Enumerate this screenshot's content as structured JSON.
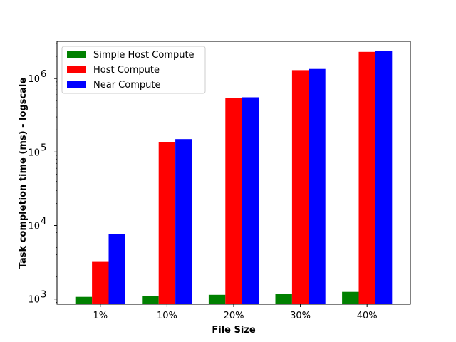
{
  "chart_data": {
    "type": "bar",
    "xlabel": "File Size",
    "ylabel": "Task completion time (ms) - logscale",
    "yscale": "log",
    "ylim": [
      850,
      3200000
    ],
    "categories": [
      "1%",
      "10%",
      "20%",
      "30%",
      "40%"
    ],
    "y_ticks": [
      {
        "value": 1000,
        "base": "10",
        "exp": "3"
      },
      {
        "value": 10000,
        "base": "10",
        "exp": "4"
      },
      {
        "value": 100000,
        "base": "10",
        "exp": "5"
      },
      {
        "value": 1000000,
        "base": "10",
        "exp": "6"
      }
    ],
    "series": [
      {
        "name": "Simple Host Compute",
        "color": "#008000",
        "values": [
          1070,
          1110,
          1140,
          1170,
          1250
        ]
      },
      {
        "name": "Host Compute",
        "color": "#ff0000",
        "values": [
          3200,
          135000,
          540000,
          1300000,
          2300000
        ]
      },
      {
        "name": "Near Compute",
        "color": "#0000ff",
        "values": [
          7600,
          150000,
          555000,
          1350000,
          2350000
        ]
      }
    ],
    "legend": "top-left",
    "grid": false
  }
}
